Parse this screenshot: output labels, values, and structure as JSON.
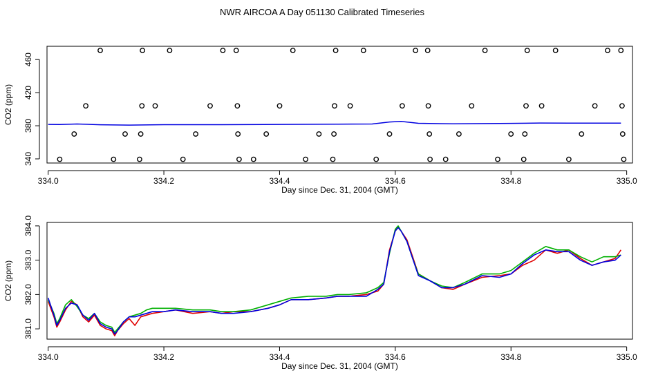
{
  "title": "NWR AIRCOA A  Day 051130  Calibrated Timeseries",
  "colors": {
    "red": "#e00000",
    "green": "#00b000",
    "blue": "#0000e0",
    "axis": "#000000"
  },
  "chart_data": [
    {
      "type": "scatter",
      "xlabel": "Day since Dec. 31, 2004 (GMT)",
      "ylabel": "CO2 (ppm)",
      "xlim": [
        333.998,
        335.01
      ],
      "ylim": [
        335,
        476
      ],
      "xticks": [
        "334.0",
        "334.2",
        "334.4",
        "334.6",
        "334.8",
        "335.0"
      ],
      "yticks": [
        "340",
        "380",
        "420",
        "460"
      ],
      "points": [
        {
          "x": 334.02,
          "y": 339.5
        },
        {
          "x": 334.045,
          "y": 370
        },
        {
          "x": 334.065,
          "y": 404
        },
        {
          "x": 334.09,
          "y": 471
        },
        {
          "x": 334.113,
          "y": 339.5
        },
        {
          "x": 334.133,
          "y": 370
        },
        {
          "x": 334.158,
          "y": 339.5
        },
        {
          "x": 334.16,
          "y": 370
        },
        {
          "x": 334.162,
          "y": 404
        },
        {
          "x": 334.163,
          "y": 471
        },
        {
          "x": 334.185,
          "y": 404
        },
        {
          "x": 334.21,
          "y": 471
        },
        {
          "x": 334.233,
          "y": 339.5
        },
        {
          "x": 334.255,
          "y": 370
        },
        {
          "x": 334.28,
          "y": 404
        },
        {
          "x": 334.302,
          "y": 471
        },
        {
          "x": 334.325,
          "y": 471
        },
        {
          "x": 334.327,
          "y": 404
        },
        {
          "x": 334.328,
          "y": 370
        },
        {
          "x": 334.33,
          "y": 339.5
        },
        {
          "x": 334.355,
          "y": 339.5
        },
        {
          "x": 334.377,
          "y": 370
        },
        {
          "x": 334.4,
          "y": 404
        },
        {
          "x": 334.423,
          "y": 471
        },
        {
          "x": 334.445,
          "y": 339.5
        },
        {
          "x": 334.468,
          "y": 370
        },
        {
          "x": 334.492,
          "y": 339.5
        },
        {
          "x": 334.494,
          "y": 370
        },
        {
          "x": 334.495,
          "y": 404
        },
        {
          "x": 334.497,
          "y": 471
        },
        {
          "x": 334.522,
          "y": 404
        },
        {
          "x": 334.545,
          "y": 471
        },
        {
          "x": 334.567,
          "y": 339.5
        },
        {
          "x": 334.59,
          "y": 370
        },
        {
          "x": 334.612,
          "y": 404
        },
        {
          "x": 334.635,
          "y": 471
        },
        {
          "x": 334.656,
          "y": 471
        },
        {
          "x": 334.657,
          "y": 404
        },
        {
          "x": 334.659,
          "y": 370
        },
        {
          "x": 334.66,
          "y": 339.5
        },
        {
          "x": 334.687,
          "y": 339.5
        },
        {
          "x": 334.71,
          "y": 370
        },
        {
          "x": 334.732,
          "y": 404
        },
        {
          "x": 334.755,
          "y": 471
        },
        {
          "x": 334.777,
          "y": 339.5
        },
        {
          "x": 334.8,
          "y": 370
        },
        {
          "x": 334.822,
          "y": 339.5
        },
        {
          "x": 334.824,
          "y": 370
        },
        {
          "x": 334.826,
          "y": 404
        },
        {
          "x": 334.828,
          "y": 471
        },
        {
          "x": 334.853,
          "y": 404
        },
        {
          "x": 334.877,
          "y": 471
        },
        {
          "x": 334.9,
          "y": 339.5
        },
        {
          "x": 334.922,
          "y": 370
        },
        {
          "x": 334.945,
          "y": 404
        },
        {
          "x": 334.967,
          "y": 471
        },
        {
          "x": 334.99,
          "y": 471
        },
        {
          "x": 334.992,
          "y": 404
        },
        {
          "x": 334.993,
          "y": 370
        },
        {
          "x": 334.995,
          "y": 339.5
        }
      ],
      "line": {
        "x": [
          334.0,
          334.02,
          334.05,
          334.09,
          334.14,
          334.2,
          334.3,
          334.4,
          334.5,
          334.56,
          334.59,
          334.61,
          334.64,
          334.7,
          334.8,
          334.85,
          334.9,
          334.99
        ],
        "y": [
          381.6,
          381.5,
          382.1,
          381.2,
          380.8,
          381.3,
          381.3,
          381.6,
          382.0,
          382.1,
          384.6,
          385.3,
          383.0,
          382.3,
          382.9,
          383.3,
          383.2,
          383.1
        ]
      }
    },
    {
      "type": "line",
      "xlabel": "Day since Dec. 31, 2004 (GMT)",
      "ylabel": "CO2 (ppm)",
      "xlim": [
        333.998,
        335.01
      ],
      "ylim": [
        380.7,
        384.1
      ],
      "xticks": [
        "334.0",
        "334.2",
        "334.4",
        "334.6",
        "334.8",
        "335.0"
      ],
      "yticks": [
        "381.0",
        "382.0",
        "383.0",
        "384.0"
      ],
      "series": [
        {
          "name": "red",
          "x": [
            334.0,
            334.01,
            334.015,
            334.02,
            334.03,
            334.04,
            334.05,
            334.06,
            334.07,
            334.08,
            334.09,
            334.1,
            334.11,
            334.115,
            334.12,
            334.13,
            334.14,
            334.15,
            334.16,
            334.17,
            334.18,
            334.2,
            334.22,
            334.25,
            334.28,
            334.3,
            334.32,
            334.35,
            334.38,
            334.4,
            334.42,
            334.45,
            334.48,
            334.5,
            334.52,
            334.55,
            334.57,
            334.58,
            334.59,
            334.6,
            334.605,
            334.61,
            334.62,
            334.63,
            334.64,
            334.66,
            334.68,
            334.7,
            334.72,
            334.75,
            334.78,
            334.8,
            334.82,
            334.84,
            334.86,
            334.88,
            334.9,
            334.92,
            334.94,
            334.96,
            334.98,
            334.99
          ],
          "y": [
            381.8,
            381.35,
            381.05,
            381.2,
            381.55,
            381.8,
            381.7,
            381.35,
            381.2,
            381.4,
            381.1,
            381.0,
            380.95,
            380.8,
            380.95,
            381.15,
            381.3,
            381.1,
            381.35,
            381.4,
            381.45,
            381.5,
            381.55,
            381.45,
            381.5,
            381.45,
            381.5,
            381.5,
            381.6,
            381.7,
            381.85,
            381.85,
            381.9,
            381.95,
            381.95,
            382.0,
            382.1,
            382.3,
            383.3,
            383.85,
            383.95,
            383.85,
            383.6,
            383.1,
            382.6,
            382.4,
            382.2,
            382.15,
            382.3,
            382.5,
            382.55,
            382.6,
            382.85,
            383.0,
            383.3,
            383.2,
            383.3,
            383.05,
            382.85,
            382.95,
            383.05,
            383.3
          ]
        },
        {
          "name": "green",
          "x": [
            334.0,
            334.01,
            334.015,
            334.02,
            334.03,
            334.04,
            334.05,
            334.06,
            334.07,
            334.08,
            334.09,
            334.1,
            334.11,
            334.115,
            334.12,
            334.13,
            334.14,
            334.15,
            334.16,
            334.17,
            334.18,
            334.2,
            334.22,
            334.25,
            334.28,
            334.3,
            334.32,
            334.35,
            334.38,
            334.4,
            334.42,
            334.45,
            334.48,
            334.5,
            334.52,
            334.55,
            334.57,
            334.58,
            334.59,
            334.6,
            334.605,
            334.61,
            334.62,
            334.63,
            334.64,
            334.66,
            334.68,
            334.7,
            334.72,
            334.75,
            334.78,
            334.8,
            334.82,
            334.84,
            334.86,
            334.88,
            334.9,
            334.92,
            334.94,
            334.96,
            334.98,
            334.99
          ],
          "y": [
            381.85,
            381.45,
            381.15,
            381.3,
            381.7,
            381.85,
            381.65,
            381.4,
            381.3,
            381.45,
            381.2,
            381.1,
            381.05,
            380.9,
            381.0,
            381.2,
            381.35,
            381.4,
            381.45,
            381.55,
            381.6,
            381.6,
            381.6,
            381.55,
            381.55,
            381.5,
            381.5,
            381.55,
            381.7,
            381.8,
            381.9,
            381.95,
            381.95,
            382.0,
            382.0,
            382.05,
            382.2,
            382.35,
            383.2,
            383.9,
            384.0,
            383.85,
            383.55,
            383.05,
            382.6,
            382.4,
            382.25,
            382.2,
            382.35,
            382.6,
            382.6,
            382.7,
            382.95,
            383.2,
            383.4,
            383.3,
            383.3,
            383.1,
            382.95,
            383.1,
            383.1,
            383.15
          ]
        },
        {
          "name": "blue",
          "x": [
            334.0,
            334.01,
            334.015,
            334.02,
            334.03,
            334.04,
            334.05,
            334.06,
            334.07,
            334.08,
            334.09,
            334.1,
            334.11,
            334.115,
            334.12,
            334.13,
            334.14,
            334.15,
            334.16,
            334.17,
            334.18,
            334.2,
            334.22,
            334.25,
            334.28,
            334.3,
            334.32,
            334.35,
            334.38,
            334.4,
            334.42,
            334.45,
            334.48,
            334.5,
            334.52,
            334.55,
            334.57,
            334.58,
            334.59,
            334.6,
            334.605,
            334.61,
            334.62,
            334.63,
            334.64,
            334.66,
            334.68,
            334.7,
            334.72,
            334.75,
            334.78,
            334.8,
            334.82,
            334.84,
            334.86,
            334.88,
            334.9,
            334.92,
            334.94,
            334.96,
            334.98,
            334.99
          ],
          "y": [
            381.9,
            381.4,
            381.1,
            381.25,
            381.6,
            381.75,
            381.7,
            381.4,
            381.25,
            381.45,
            381.15,
            381.05,
            381.0,
            380.85,
            380.95,
            381.2,
            381.35,
            381.35,
            381.4,
            381.45,
            381.5,
            381.5,
            381.55,
            381.5,
            381.5,
            381.45,
            381.45,
            381.5,
            381.6,
            381.7,
            381.85,
            381.85,
            381.9,
            381.95,
            381.95,
            381.95,
            382.15,
            382.3,
            383.25,
            383.85,
            383.95,
            383.85,
            383.55,
            383.05,
            382.55,
            382.4,
            382.2,
            382.2,
            382.3,
            382.55,
            382.5,
            382.6,
            382.9,
            383.15,
            383.3,
            383.25,
            383.25,
            383.0,
            382.85,
            382.95,
            383.0,
            383.15
          ]
        }
      ]
    }
  ]
}
